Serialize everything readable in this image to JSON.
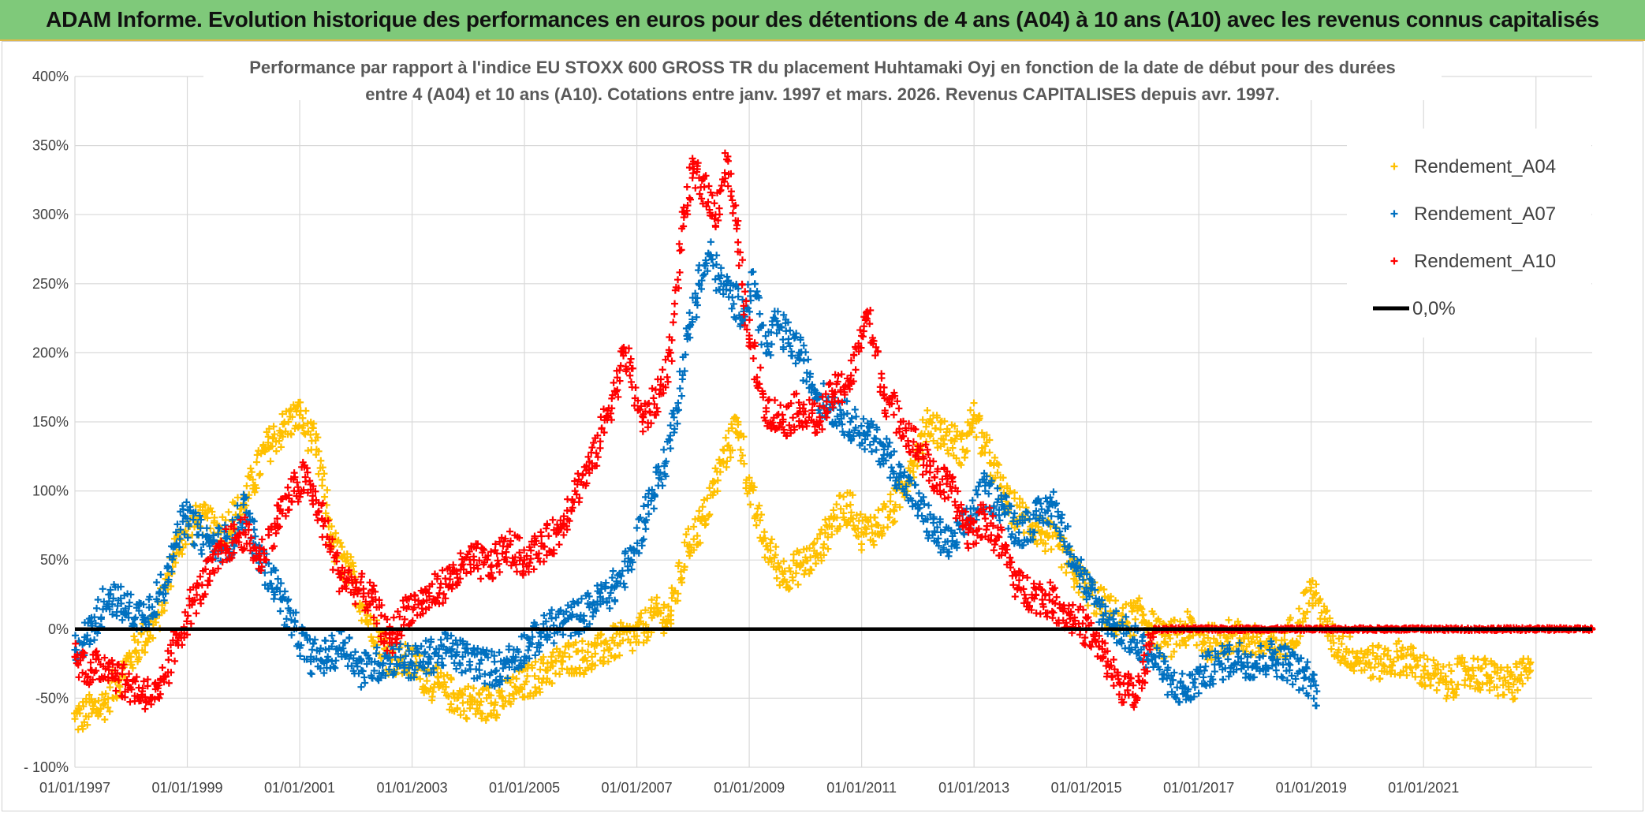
{
  "page": {
    "banner_title": "ADAM Informe. Evolution historique des performances en euros pour des détentions de 4 ans (A04) à 10 ans (A10) avec les revenus connus capitalisés"
  },
  "colors": {
    "banner_bg": "#7fc97a",
    "A04": "#ffc000",
    "A07": "#0070c0",
    "A10": "#ff0000",
    "zero": "#000000",
    "grid": "#d9d9d9"
  },
  "chart_data": {
    "type": "scatter",
    "title_lines": [
      "Performance par rapport à l'indice EU STOXX 600 GROSS TR  du placement Huhtamaki Oyj en fonction de la date de début pour des durées",
      "entre 4 (A04) et 10 ans (A10). Cotations entre janv. 1997 et mars. 2026. Revenus CAPITALISES depuis avr. 1997."
    ],
    "x_axis": {
      "min_year": 1997.0,
      "max_year": 2024.0,
      "tick_labels": [
        "01/01/1997",
        "01/01/1999",
        "01/01/2001",
        "01/01/2003",
        "01/01/2005",
        "01/01/2007",
        "01/01/2009",
        "01/01/2011",
        "01/01/2013",
        "01/01/2015",
        "01/01/2017",
        "01/01/2019",
        "01/01/2021"
      ]
    },
    "y_axis": {
      "min": -100,
      "max": 400,
      "step": 50,
      "tick_labels": [
        "- 100%",
        "-50%",
        "0%",
        "50%",
        "100%",
        "150%",
        "200%",
        "250%",
        "300%",
        "350%",
        "400%"
      ]
    },
    "legend_position": "top-right",
    "series": [
      {
        "name": "Rendement_A04",
        "color": "#ffc000",
        "x": [
          1997.0,
          1997.5,
          1998.0,
          1998.5,
          1998.8,
          1999.2,
          1999.6,
          2000.0,
          2000.4,
          2000.8,
          2001.0,
          2001.3,
          2001.6,
          2001.9,
          2002.2,
          2002.6,
          2003.0,
          2003.4,
          2003.8,
          2004.2,
          2004.6,
          2005.0,
          2005.4,
          2005.8,
          2006.2,
          2006.6,
          2007.0,
          2007.3,
          2007.6,
          2007.9,
          2008.2,
          2008.5,
          2008.8,
          2009.0,
          2009.3,
          2009.6,
          2009.9,
          2010.2,
          2010.5,
          2010.8,
          2011.0,
          2011.3,
          2011.6,
          2011.9,
          2012.2,
          2012.5,
          2012.8,
          2013.0,
          2013.3,
          2013.6,
          2013.9,
          2014.2,
          2014.5,
          2014.8,
          2015.2,
          2015.6,
          2016.0,
          2016.4,
          2016.8,
          2017.2,
          2017.6,
          2018.0,
          2018.4,
          2018.8,
          2019.0,
          2019.4,
          2019.8,
          2020.2,
          2020.6,
          2021.0,
          2021.4,
          2021.8,
          2022.2,
          2022.6,
          2022.9
        ],
        "y": [
          -65,
          -55,
          -20,
          10,
          60,
          80,
          70,
          90,
          130,
          150,
          155,
          130,
          60,
          40,
          10,
          -20,
          -25,
          -40,
          -50,
          -55,
          -50,
          -40,
          -30,
          -20,
          -20,
          -10,
          -5,
          10,
          10,
          60,
          80,
          120,
          150,
          100,
          60,
          40,
          45,
          55,
          80,
          90,
          70,
          75,
          90,
          120,
          150,
          140,
          130,
          155,
          120,
          90,
          80,
          70,
          60,
          40,
          20,
          5,
          10,
          -10,
          0,
          -10,
          -5,
          -10,
          -15,
          5,
          30,
          -10,
          -20,
          -25,
          -20,
          -30,
          -40,
          -30,
          -35,
          -40,
          -30
        ]
      },
      {
        "name": "Rendement_A07",
        "color": "#0070c0",
        "x": [
          1997.0,
          1997.3,
          1997.6,
          1997.9,
          1998.2,
          1998.6,
          1998.8,
          1999.0,
          1999.4,
          1999.8,
          2000.0,
          2000.3,
          2000.6,
          2000.9,
          2001.2,
          2001.5,
          2001.8,
          2002.1,
          2002.4,
          2002.7,
          2003.0,
          2003.3,
          2003.6,
          2003.9,
          2004.2,
          2004.5,
          2004.8,
          2005.1,
          2005.4,
          2005.7,
          2006.0,
          2006.3,
          2006.6,
          2006.9,
          2007.2,
          2007.5,
          2007.7,
          2007.9,
          2008.1,
          2008.3,
          2008.5,
          2008.7,
          2008.9,
          2009.1,
          2009.3,
          2009.5,
          2009.7,
          2009.9,
          2010.2,
          2010.5,
          2010.8,
          2011.1,
          2011.4,
          2011.7,
          2012.0,
          2012.3,
          2012.6,
          2012.9,
          2013.2,
          2013.5,
          2013.8,
          2014.1,
          2014.4,
          2014.7,
          2015.0,
          2015.3,
          2015.6,
          2015.9,
          2016.2,
          2016.5,
          2016.8,
          2017.1,
          2017.4,
          2017.7,
          2018.0,
          2018.3,
          2018.6,
          2018.9,
          2019.1
        ],
        "y": [
          -15,
          0,
          25,
          15,
          10,
          30,
          70,
          80,
          60,
          65,
          90,
          50,
          30,
          0,
          -20,
          -20,
          -10,
          -30,
          -25,
          -20,
          -25,
          -20,
          -15,
          -20,
          -25,
          -30,
          -20,
          -10,
          0,
          5,
          10,
          20,
          30,
          50,
          90,
          120,
          160,
          210,
          250,
          270,
          250,
          240,
          230,
          250,
          200,
          220,
          210,
          200,
          170,
          160,
          150,
          140,
          130,
          110,
          90,
          70,
          60,
          80,
          100,
          90,
          70,
          80,
          90,
          60,
          30,
          10,
          0,
          -10,
          -20,
          -40,
          -45,
          -30,
          -25,
          -20,
          -25,
          -20,
          -25,
          -35,
          -45
        ]
      },
      {
        "name": "Rendement_A10",
        "color": "#ff0000",
        "x": [
          1997.0,
          1997.3,
          1997.6,
          1997.9,
          1998.2,
          1998.5,
          1998.8,
          1999.1,
          1999.4,
          1999.7,
          2000.0,
          2000.3,
          2000.6,
          2000.9,
          2001.1,
          2001.4,
          2001.7,
          2002.0,
          2002.3,
          2002.6,
          2002.9,
          2003.2,
          2003.5,
          2003.8,
          2004.1,
          2004.4,
          2004.7,
          2005.0,
          2005.3,
          2005.6,
          2005.9,
          2006.2,
          2006.5,
          2006.8,
          2007.1,
          2007.4,
          2007.6,
          2007.8,
          2008.0,
          2008.2,
          2008.4,
          2008.6,
          2008.8,
          2009.0,
          2009.3,
          2009.6,
          2009.9,
          2010.2,
          2010.5,
          2010.8,
          2011.1,
          2011.4,
          2011.7,
          2012.0,
          2012.3,
          2012.6,
          2012.9,
          2013.2,
          2013.5,
          2013.8,
          2014.1,
          2014.4,
          2014.7,
          2015.0,
          2015.3,
          2015.6,
          2015.9,
          2016.2,
          2016.5,
          2017.0,
          2017.5,
          2018.0,
          2018.5,
          2019.0,
          2019.5,
          2020.0,
          2020.5,
          2021.0,
          2021.5,
          2022.0,
          2022.5,
          2023.0,
          2023.5,
          2024.0
        ],
        "y": [
          -20,
          -30,
          -25,
          -40,
          -45,
          -50,
          -10,
          20,
          40,
          60,
          70,
          50,
          80,
          100,
          110,
          80,
          40,
          30,
          20,
          -10,
          15,
          20,
          30,
          40,
          50,
          45,
          60,
          50,
          60,
          70,
          100,
          120,
          160,
          200,
          150,
          170,
          200,
          290,
          330,
          320,
          300,
          340,
          280,
          210,
          160,
          150,
          160,
          150,
          170,
          180,
          230,
          170,
          150,
          130,
          110,
          100,
          70,
          80,
          60,
          30,
          25,
          20,
          10,
          0,
          -20,
          -40,
          -50,
          0,
          0,
          0,
          0,
          0,
          0,
          0,
          0,
          0,
          0,
          0,
          0,
          0,
          0,
          0,
          0,
          0
        ]
      }
    ],
    "legend": [
      {
        "label": "Rendement_A04",
        "color": "#ffc000",
        "marker": "+"
      },
      {
        "label": "Rendement_A07",
        "color": "#0070c0",
        "marker": "+"
      },
      {
        "label": "Rendement_A10",
        "color": "#ff0000",
        "marker": "+"
      },
      {
        "label": "0,0%",
        "color": "#000000",
        "marker": "line"
      }
    ]
  }
}
